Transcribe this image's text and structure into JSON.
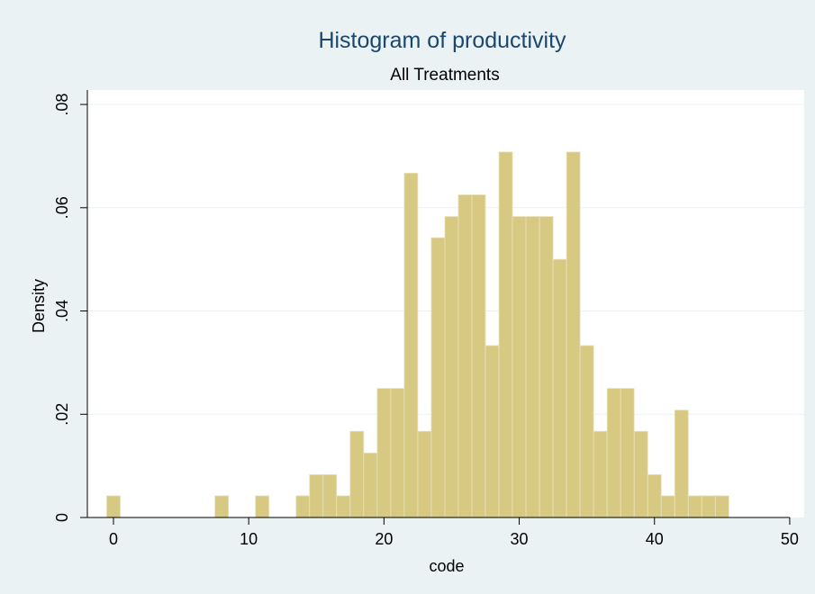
{
  "chart_data": {
    "type": "histogram",
    "title": "Histogram of productivity",
    "subtitle": "All Treatments",
    "x_label": "code",
    "y_label": "Density",
    "bins": [
      -0.5,
      0.5,
      1.5,
      2.5,
      3.5,
      4.5,
      5.5,
      6.5,
      7.5,
      8.5,
      9.5,
      10.5,
      11.5,
      12.5,
      13.5,
      14.5,
      15.5,
      16.5,
      17.5,
      18.5,
      19.5,
      20.5,
      21.5,
      22.5,
      23.5,
      24.5,
      25.5,
      26.5,
      27.5,
      28.5,
      29.5,
      30.5,
      31.5,
      32.5,
      33.5,
      34.5,
      35.5,
      36.5,
      37.5,
      38.5,
      39.5,
      40.5,
      41.5,
      42.5,
      43.5,
      44.5,
      45.5
    ],
    "values": [
      0.0042,
      0,
      0,
      0,
      0,
      0,
      0,
      0,
      0.0042,
      0,
      0,
      0.0042,
      0,
      0,
      0.0042,
      0.0083,
      0.0083,
      0.0042,
      0.0167,
      0.0125,
      0.025,
      0.025,
      0.0667,
      0.0167,
      0.0542,
      0.0583,
      0.0625,
      0.0625,
      0.0333,
      0.0708,
      0.0583,
      0.0583,
      0.0583,
      0.05,
      0.0708,
      0.0333,
      0.0167,
      0.025,
      0.025,
      0.0167,
      0.0083,
      0.0042,
      0.0208,
      0.0042,
      0.0042,
      0.0042
    ],
    "color": "#d7c982",
    "xlim": [
      -1.93,
      51.07
    ],
    "ylim": [
      0,
      0.0828
    ],
    "xticks": [
      0,
      10,
      20,
      30,
      40,
      50
    ],
    "yticks": [
      0,
      {
        "value": 0.02,
        "label": ".02"
      },
      {
        "value": 0.04,
        "label": ".04"
      },
      {
        "value": 0.06,
        "label": ".06"
      },
      {
        "value": 0.08,
        "label": ".08"
      }
    ],
    "grid": true
  }
}
